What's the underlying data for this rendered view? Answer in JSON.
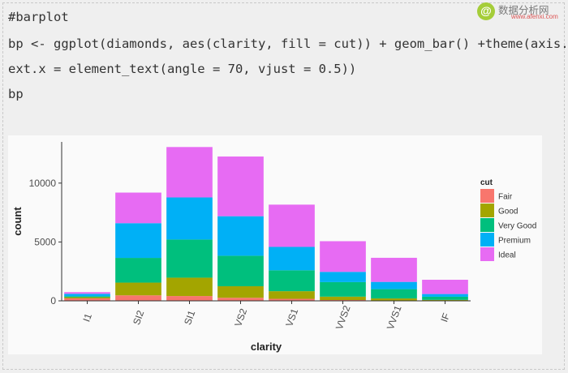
{
  "code_lines": [
    "#barplot",
    "bp <- ggplot(diamonds, aes(clarity, fill = cut)) + geom_bar() +theme(axis.t",
    "ext.x = element_text(angle = 70, vjust = 0.5))",
    "bp"
  ],
  "watermark": {
    "icon_glyph": "@",
    "text": "数据分析网",
    "url": "www.afenxi.com"
  },
  "colors": [
    "#F8766D",
    "#A3A500",
    "#00BF7D",
    "#00B0F6",
    "#E76BF3"
  ],
  "chart_data": {
    "type": "bar",
    "stacked": true,
    "title": "",
    "xlabel": "clarity",
    "ylabel": "count",
    "ylim": [
      0,
      13500
    ],
    "yticks": [
      0,
      5000,
      10000
    ],
    "categories": [
      "I1",
      "SI2",
      "SI1",
      "VS2",
      "VS1",
      "VVS2",
      "VVS1",
      "IF"
    ],
    "series": [
      {
        "name": "Fair",
        "values": [
          210,
          466,
          408,
          261,
          170,
          69,
          17,
          9
        ]
      },
      {
        "name": "Good",
        "values": [
          96,
          1081,
          1560,
          978,
          648,
          286,
          186,
          71
        ]
      },
      {
        "name": "Very Good",
        "values": [
          84,
          2100,
          3240,
          2591,
          1775,
          1235,
          789,
          268
        ]
      },
      {
        "name": "Premium",
        "values": [
          205,
          2949,
          3575,
          3357,
          1989,
          870,
          616,
          230
        ]
      },
      {
        "name": "Ideal",
        "values": [
          146,
          2598,
          4282,
          5071,
          3589,
          2606,
          2047,
          1212
        ]
      }
    ],
    "legend": {
      "title": "cut",
      "position": "right"
    },
    "grid": false
  }
}
